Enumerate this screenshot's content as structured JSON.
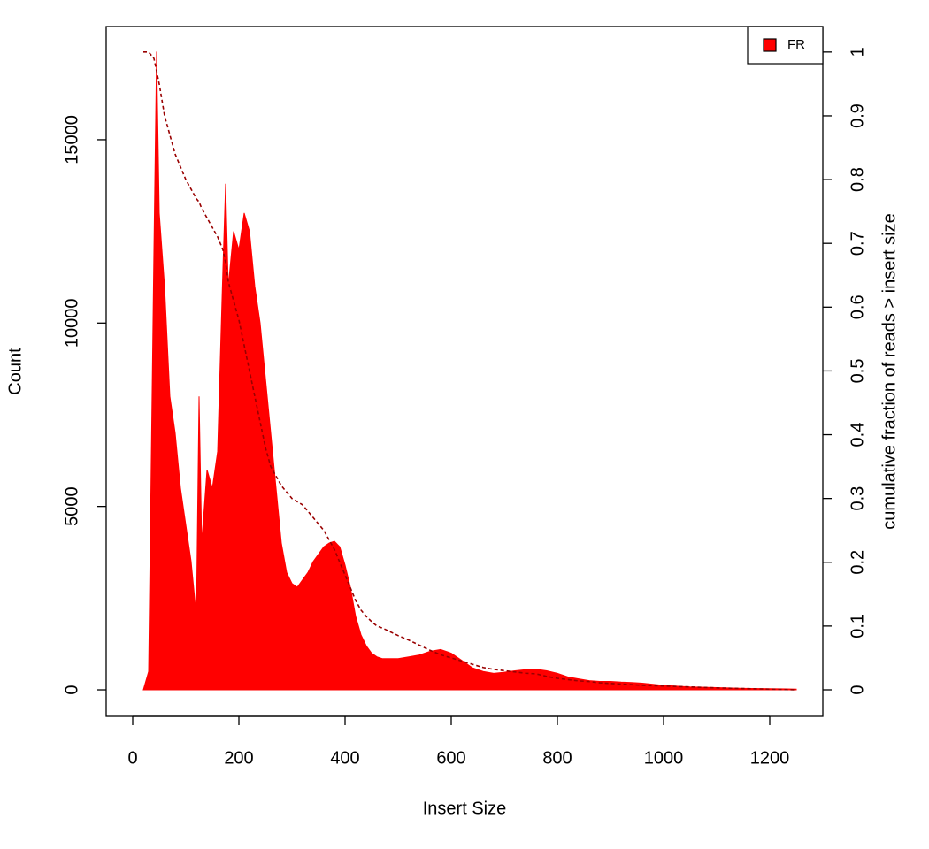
{
  "chart_data": {
    "type": "area",
    "xlabel": "Insert Size",
    "ylabel": "Count",
    "y2label": "cumulative fraction of reads > insert size",
    "x": [
      20,
      30,
      40,
      45,
      50,
      60,
      70,
      80,
      90,
      100,
      110,
      120,
      125,
      130,
      140,
      150,
      160,
      170,
      175,
      180,
      190,
      200,
      210,
      220,
      230,
      240,
      250,
      260,
      270,
      280,
      290,
      300,
      310,
      320,
      330,
      340,
      350,
      360,
      370,
      380,
      390,
      400,
      410,
      420,
      430,
      440,
      450,
      460,
      470,
      480,
      490,
      500,
      520,
      540,
      560,
      580,
      600,
      620,
      640,
      660,
      680,
      700,
      720,
      740,
      760,
      780,
      800,
      820,
      840,
      860,
      880,
      900,
      920,
      940,
      960,
      980,
      1000,
      1050,
      1100,
      1150,
      1200,
      1250
    ],
    "series": [
      {
        "name": "FR",
        "color": "#ff0000",
        "axis": "y",
        "values": [
          0,
          500,
          12000,
          17400,
          13000,
          11000,
          8000,
          7000,
          5500,
          4500,
          3500,
          2000,
          8000,
          4000,
          6000,
          5500,
          6500,
          11500,
          13800,
          11000,
          12500,
          12000,
          13000,
          12500,
          11000,
          10000,
          8500,
          7000,
          5500,
          4000,
          3200,
          2900,
          2800,
          3000,
          3200,
          3500,
          3700,
          3900,
          4000,
          4050,
          3900,
          3400,
          2800,
          2000,
          1500,
          1200,
          1000,
          900,
          850,
          850,
          850,
          850,
          900,
          950,
          1050,
          1100,
          1000,
          800,
          600,
          500,
          450,
          480,
          520,
          550,
          560,
          520,
          450,
          350,
          300,
          250,
          230,
          230,
          210,
          200,
          180,
          150,
          120,
          80,
          60,
          40,
          30,
          20
        ]
      },
      {
        "color": "#990000",
        "axis": "y2",
        "linestyle": "dashed",
        "values": [
          1,
          1,
          0.99,
          0.97,
          0.95,
          0.9,
          0.87,
          0.84,
          0.82,
          0.8,
          0.785,
          0.77,
          0.765,
          0.755,
          0.74,
          0.725,
          0.71,
          0.69,
          0.67,
          0.64,
          0.61,
          0.58,
          0.54,
          0.5,
          0.46,
          0.42,
          0.38,
          0.35,
          0.335,
          0.32,
          0.31,
          0.3,
          0.295,
          0.29,
          0.28,
          0.27,
          0.26,
          0.25,
          0.235,
          0.22,
          0.2,
          0.18,
          0.16,
          0.14,
          0.125,
          0.115,
          0.107,
          0.1,
          0.097,
          0.093,
          0.089,
          0.085,
          0.078,
          0.07,
          0.062,
          0.055,
          0.05,
          0.045,
          0.04,
          0.035,
          0.032,
          0.03,
          0.028,
          0.026,
          0.025,
          0.021,
          0.018,
          0.016,
          0.014,
          0.013,
          0.011,
          0.01,
          0.009,
          0.008,
          0.007,
          0.0065,
          0.006,
          0.0045,
          0.003,
          0.002,
          0.001,
          0
        ]
      }
    ],
    "xlim": [
      -50,
      1300
    ],
    "xticks": [
      0,
      200,
      400,
      600,
      800,
      1000,
      1200
    ],
    "ylim": [
      -723,
      18085
    ],
    "yticks": [
      0,
      5000,
      10000,
      15000
    ],
    "y2lim": [
      -0.0416,
      1.04
    ],
    "y2ticks": [
      0,
      0.1,
      0.2,
      0.3,
      0.4,
      0.5,
      0.6,
      0.7,
      0.8,
      0.9,
      1
    ],
    "legend": "top-right"
  }
}
